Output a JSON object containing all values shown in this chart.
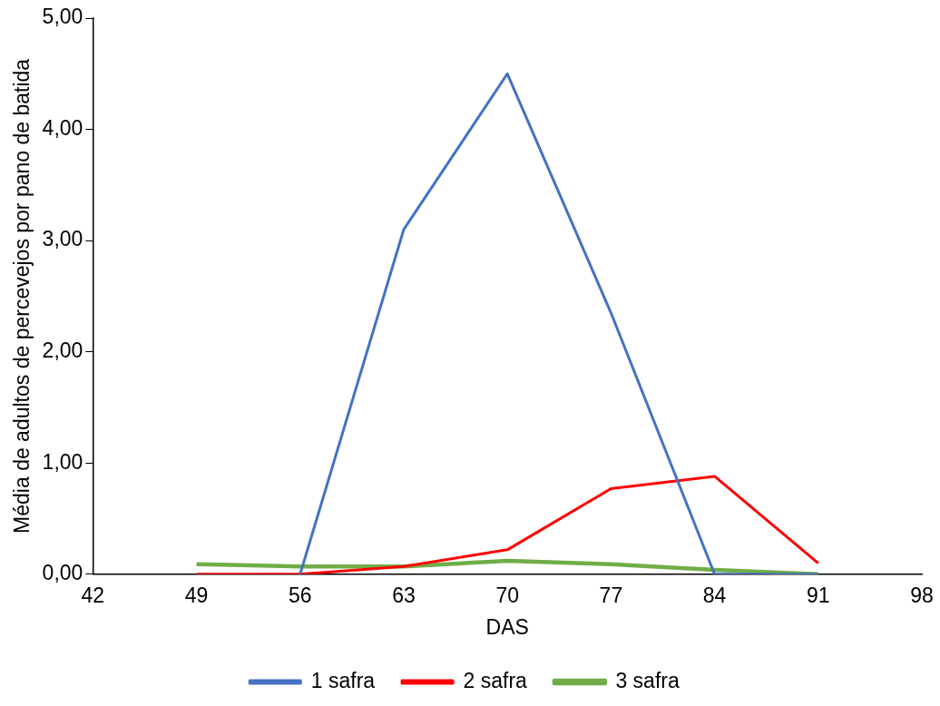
{
  "chart_data": {
    "type": "line",
    "xlabel": "DAS",
    "ylabel": "Média de adultos de percevejos por pano de batida",
    "x": [
      49,
      56,
      63,
      70,
      77,
      84,
      91
    ],
    "series": [
      {
        "name": "1 safra",
        "color": "#4472c4",
        "values": [
          null,
          0,
          3.1,
          4.5,
          2.35,
          0,
          0
        ]
      },
      {
        "name": "2 safra",
        "color": "#ff0000",
        "values": [
          0,
          0,
          0.07,
          0.22,
          0.77,
          0.88,
          0.1
        ]
      },
      {
        "name": "3 safra",
        "color": "#70ad47",
        "values": [
          0.09,
          0.07,
          0.07,
          0.12,
          0.09,
          0.04,
          0
        ]
      }
    ],
    "xlim": [
      42,
      98
    ],
    "xticks": [
      42,
      49,
      56,
      63,
      70,
      77,
      84,
      91,
      98
    ],
    "ylim": [
      0,
      5
    ],
    "yticks": [
      {
        "value": 0,
        "label": "0,00"
      },
      {
        "value": 1,
        "label": "1,00"
      },
      {
        "value": 2,
        "label": "2,00"
      },
      {
        "value": 3,
        "label": "3,00"
      },
      {
        "value": 4,
        "label": "4,00"
      },
      {
        "value": 5,
        "label": "5,00"
      }
    ],
    "grid": false,
    "legend": "bottom",
    "marker": "none",
    "line_style": "solid"
  }
}
